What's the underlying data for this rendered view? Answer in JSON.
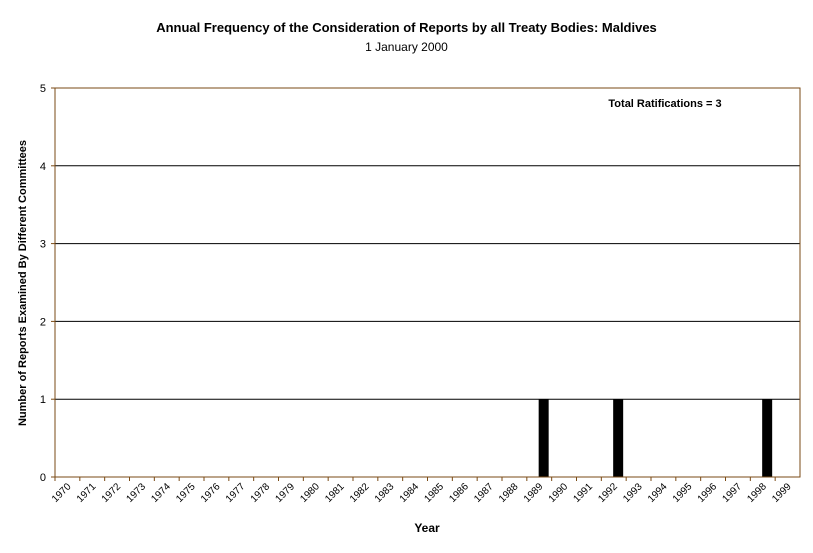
{
  "chart_data": {
    "type": "bar",
    "title": "Annual Frequency of the Consideration of Reports by all Treaty Bodies: Maldives",
    "subtitle": "1 January 2000",
    "xlabel": "Year",
    "ylabel": "Number of Reports Examined By Different Committees",
    "annotation": "Total Ratifications = 3",
    "categories": [
      "1970",
      "1971",
      "1972",
      "1973",
      "1974",
      "1975",
      "1976",
      "1977",
      "1978",
      "1979",
      "1980",
      "1981",
      "1982",
      "1983",
      "1984",
      "1985",
      "1986",
      "1987",
      "1988",
      "1989",
      "1990",
      "1991",
      "1992",
      "1993",
      "1994",
      "1995",
      "1996",
      "1997",
      "1998",
      "1999"
    ],
    "values": [
      0,
      0,
      0,
      0,
      0,
      0,
      0,
      0,
      0,
      0,
      0,
      0,
      0,
      0,
      0,
      0,
      0,
      0,
      0,
      1,
      0,
      0,
      1,
      0,
      0,
      0,
      0,
      0,
      1,
      0
    ],
    "ylim": [
      0,
      5
    ],
    "yticks": [
      0,
      1,
      2,
      3,
      4,
      5
    ],
    "grid": true,
    "colors": {
      "bar": "#000000",
      "axis": "#7a4a14",
      "grid": "#000000",
      "text": "#000000"
    }
  }
}
